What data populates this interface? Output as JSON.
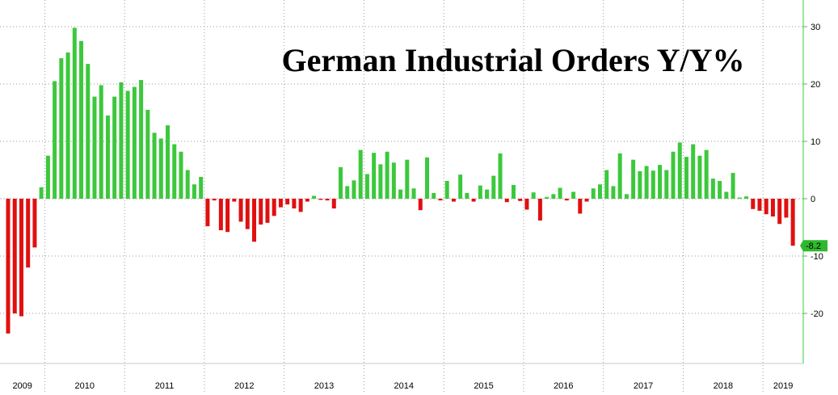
{
  "chart_data": {
    "type": "bar",
    "title": "German Industrial Orders Y/Y%",
    "xlabel": "",
    "ylabel": "",
    "ylim": [
      -30,
      34
    ],
    "y_ticks": [
      30,
      20,
      10,
      0,
      -10,
      -20
    ],
    "y_tick_labels": [
      "30",
      "20",
      "10",
      "0",
      "-10",
      "-20"
    ],
    "year_labels": [
      "2009",
      "2010",
      "2011",
      "2012",
      "2013",
      "2014",
      "2015",
      "2016",
      "2017",
      "2018",
      "2019"
    ],
    "last_value_label": "-8.2",
    "positive_color": "#3cc83c",
    "negative_color": "#e01010",
    "label_badge_color": "#2eb82e",
    "axis_color": "#3cc83c",
    "grid": "dotted",
    "series": [
      {
        "name": "German Industrial Orders Y/Y%",
        "values": [
          -23.5,
          -20,
          -20.5,
          -12,
          -8.5,
          2,
          7.5,
          20.5,
          24.5,
          25.5,
          29.8,
          27.5,
          23.5,
          17.8,
          19.8,
          14.5,
          17.8,
          20.3,
          18.8,
          19.5,
          20.7,
          15.5,
          11.5,
          10.5,
          12.8,
          9.5,
          8.2,
          5,
          2.5,
          3.8,
          -4.8,
          -0.3,
          -5.5,
          -5.8,
          -0.5,
          -4,
          -5.3,
          -7.5,
          -4.5,
          -4.2,
          -3,
          -1.5,
          -1,
          -1.7,
          -2.3,
          -0.5,
          0.5,
          -0.2,
          -0.3,
          -1.7,
          5.5,
          2.2,
          3.2,
          8.5,
          4.3,
          8,
          6,
          8.2,
          6.3,
          1.6,
          6.8,
          1.8,
          -2,
          7.2,
          1,
          -0.3,
          3.1,
          -0.5,
          4.2,
          1,
          -0.5,
          2.3,
          1.6,
          4,
          7.9,
          -0.6,
          2.4,
          -0.4,
          -1.9,
          1.1,
          -3.8,
          0.3,
          0.8,
          1.9,
          -0.3,
          1.2,
          -2.6,
          -0.5,
          1.8,
          2.5,
          5,
          2.2,
          7.9,
          0.8,
          6.8,
          4.8,
          5.7,
          4.9,
          5.9,
          5,
          8.2,
          9.8,
          7.3,
          9.5,
          7.5,
          8.5,
          3.5,
          3.1,
          1.2,
          4.5,
          0.2,
          0.4,
          -1.8,
          -2.1,
          -2.7,
          -3.1,
          -4.4,
          -3.3,
          -8.2
        ]
      }
    ]
  }
}
